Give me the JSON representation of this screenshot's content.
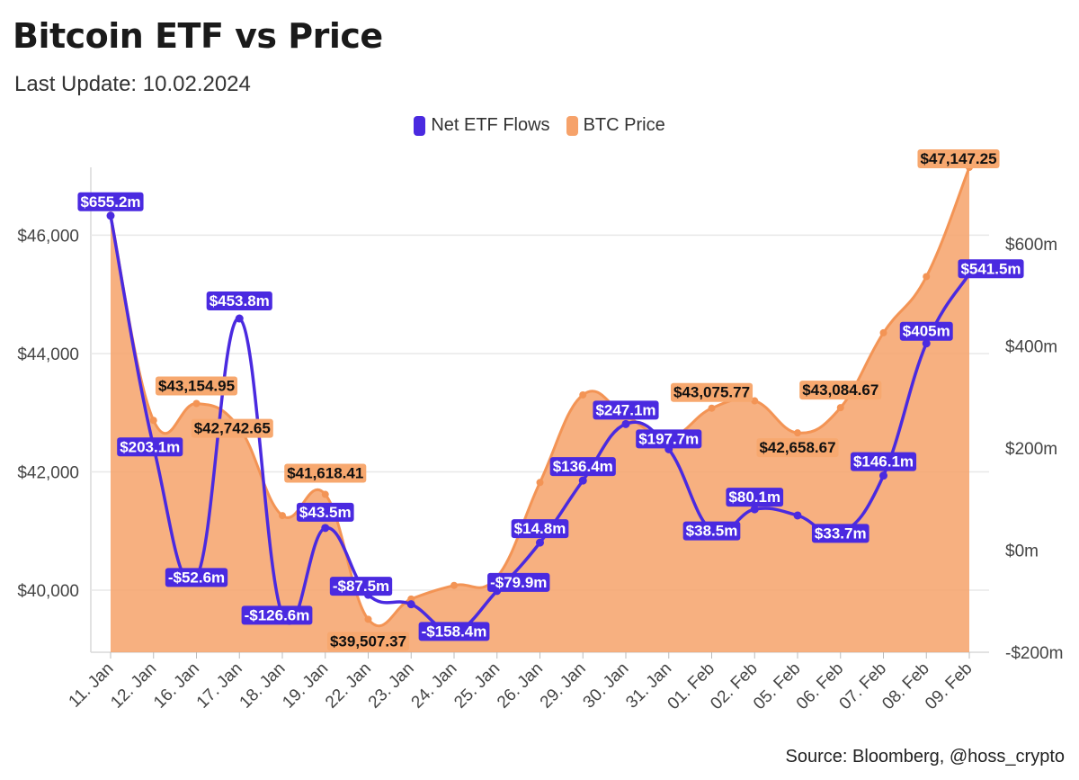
{
  "header": {
    "title": "Bitcoin ETF vs Price",
    "subtitle": "Last Update: 10.02.2024"
  },
  "footer": {
    "source": "Source: Bloomberg, @hoss_crypto"
  },
  "chart_data": {
    "type": "line",
    "title": "Bitcoin ETF vs Price",
    "subtitle": "Last Update: 10.02.2024",
    "categories": [
      "11. Jan",
      "12. Jan",
      "16. Jan",
      "17. Jan",
      "18. Jan",
      "19. Jan",
      "22. Jan",
      "23. Jan",
      "24. Jan",
      "25. Jan",
      "26. Jan",
      "29. Jan",
      "30. Jan",
      "31. Jan",
      "01. Feb",
      "02. Feb",
      "05. Feb",
      "06. Feb",
      "07. Feb",
      "08. Feb",
      "09. Feb"
    ],
    "legend_position": "top-center",
    "grid": true,
    "series": [
      {
        "name": "Net ETF Flows",
        "type": "line",
        "axis": "right",
        "color": "#4a2ae0",
        "values": [
          655.2,
          203.1,
          -52.6,
          453.8,
          -126.6,
          43.5,
          -87.5,
          -106.0,
          -158.4,
          -79.9,
          14.8,
          136.4,
          247.1,
          197.7,
          38.5,
          80.1,
          68.0,
          33.7,
          146.1,
          405,
          541.5
        ],
        "labels": [
          "$655.2m",
          "$203.1m",
          "-$52.6m",
          "$453.8m",
          "-$126.6m",
          "$43.5m",
          "-$87.5m",
          "",
          "-$158.4m",
          "-$79.9m",
          "$14.8m",
          "$136.4m",
          "$247.1m",
          "$197.7m",
          "$38.5m",
          "$80.1m",
          "",
          "$33.7m",
          "$146.1m",
          "$405m",
          "$541.5m"
        ]
      },
      {
        "name": "BTC Price",
        "type": "area",
        "axis": "left",
        "color": "#f6a26a",
        "values": [
          46339,
          42870,
          43154.95,
          42742.65,
          41260,
          41618.41,
          39507.37,
          39850,
          40080,
          40220,
          41820,
          43300,
          42950,
          42580,
          43075.77,
          43200,
          42658.67,
          43084.67,
          44350,
          45300,
          47147.25
        ],
        "labels": [
          "",
          "",
          "$43,154.95",
          "$42,742.65",
          "",
          "$41,618.41",
          "$39,507.37",
          "",
          "",
          "",
          "",
          "",
          "",
          "",
          "$43,075.77",
          "",
          "$42,658.67",
          "$43,084.67",
          "",
          "",
          "$47,147.25"
        ]
      }
    ],
    "y_left": {
      "ylim": [
        38950,
        47147.25
      ],
      "ticks": [
        40000,
        42000,
        44000,
        46000
      ],
      "tick_labels": [
        "$40,000",
        "$42,000",
        "$44,000",
        "$46,000"
      ]
    },
    "y_right": {
      "ylim": [
        -200,
        750
      ],
      "ticks": [
        -200,
        0,
        200,
        400,
        600
      ],
      "tick_labels": [
        "-$200m",
        "$0m",
        "$200m",
        "$400m",
        "$600m"
      ]
    }
  }
}
